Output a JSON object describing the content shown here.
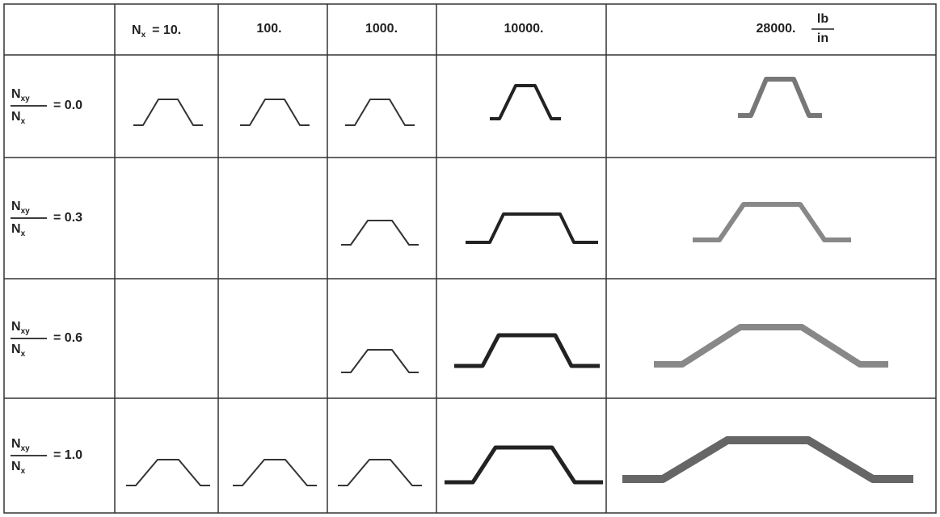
{
  "header": {
    "nx_symbol": "N",
    "nx_sub": "x",
    "cells": [
      "= 10.",
      "100.",
      "1000.",
      "10000.",
      "28000."
    ],
    "unit_num": "lb",
    "unit_den": "in"
  },
  "rows": [
    {
      "num": "N",
      "num_sub": "xy",
      "den": "N",
      "den_sub": "x",
      "value": "= 0.0"
    },
    {
      "num": "N",
      "num_sub": "xy",
      "den": "N",
      "den_sub": "x",
      "value": "= 0.3"
    },
    {
      "num": "N",
      "num_sub": "xy",
      "den": "N",
      "den_sub": "x",
      "value": "= 0.6"
    },
    {
      "num": "N",
      "num_sub": "xy",
      "den": "N",
      "den_sub": "x",
      "value": "= 1.0"
    }
  ]
}
